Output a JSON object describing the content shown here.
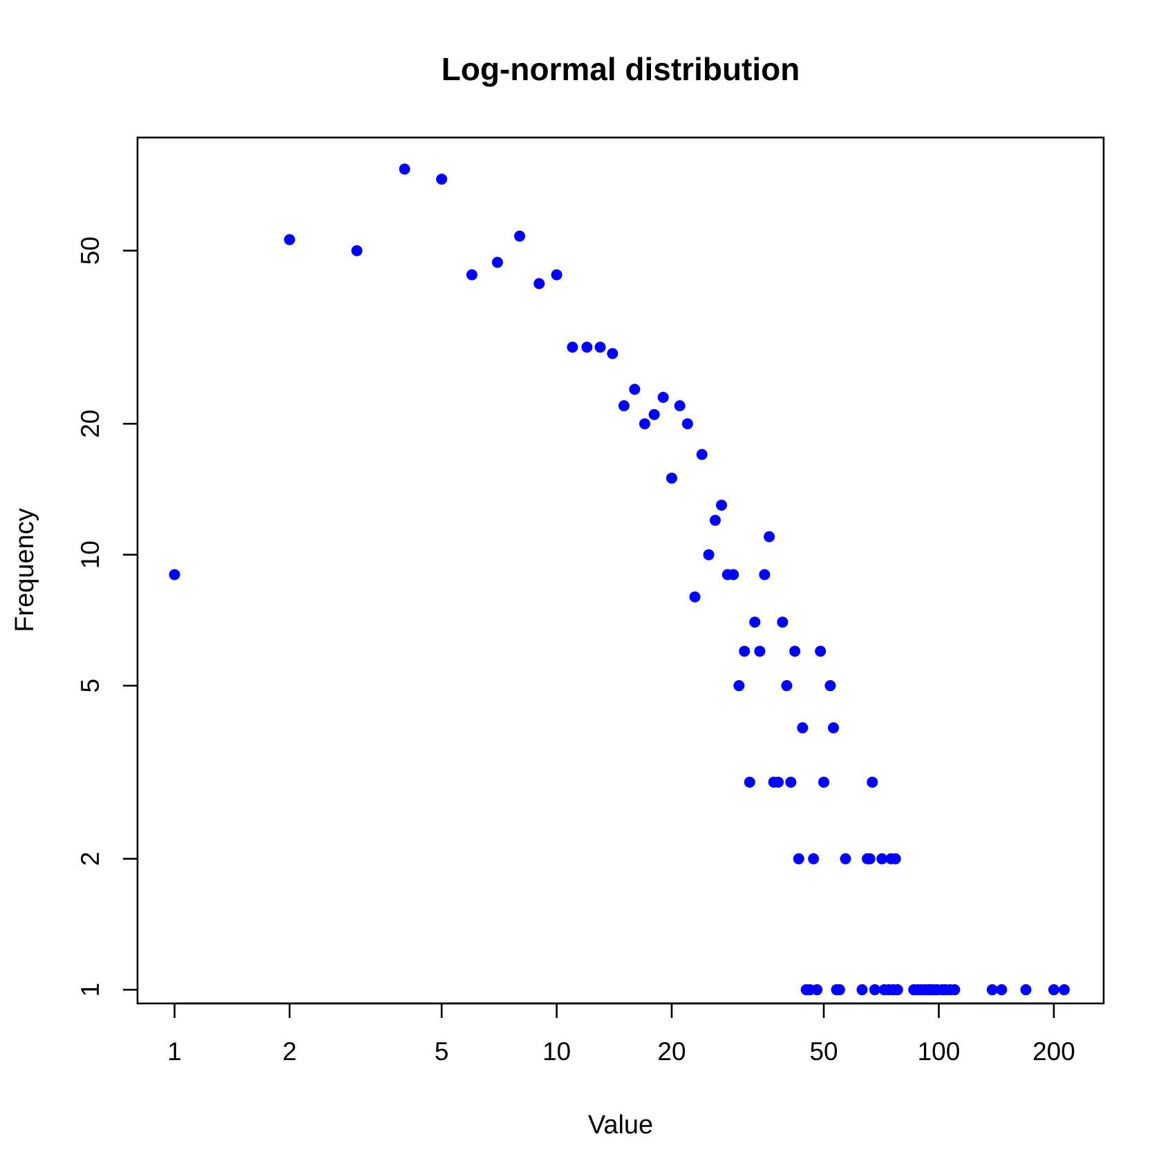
{
  "chart_data": {
    "type": "scatter",
    "title": "Log-normal distribution",
    "xlabel": "Value",
    "ylabel": "Frequency",
    "x_scale": "log",
    "y_scale": "log",
    "xlim": [
      0.8,
      270
    ],
    "ylim": [
      0.93,
      91
    ],
    "x_ticks": [
      1,
      2,
      5,
      10,
      20,
      50,
      100,
      200
    ],
    "x_tick_labels": [
      "1",
      "2",
      "5",
      "10",
      "20",
      "50",
      "100",
      "200"
    ],
    "y_ticks": [
      1,
      2,
      5,
      10,
      20,
      50
    ],
    "y_tick_labels": [
      "1",
      "2",
      "5",
      "10",
      "20",
      "50"
    ],
    "grid": false,
    "marker_color": "#0000ff",
    "series": [
      {
        "name": "counts",
        "points": [
          [
            1,
            9
          ],
          [
            2,
            53
          ],
          [
            3,
            50
          ],
          [
            4,
            77
          ],
          [
            5,
            73
          ],
          [
            6,
            44
          ],
          [
            7,
            47
          ],
          [
            8,
            54
          ],
          [
            9,
            42
          ],
          [
            10,
            44
          ],
          [
            11,
            30
          ],
          [
            12,
            30
          ],
          [
            13,
            30
          ],
          [
            14,
            29
          ],
          [
            15,
            22
          ],
          [
            16,
            24
          ],
          [
            17,
            20
          ],
          [
            18,
            21
          ],
          [
            19,
            23
          ],
          [
            20,
            15
          ],
          [
            21,
            22
          ],
          [
            22,
            20
          ],
          [
            23,
            8
          ],
          [
            24,
            17
          ],
          [
            25,
            10
          ],
          [
            26,
            12
          ],
          [
            27,
            13
          ],
          [
            28,
            9
          ],
          [
            29,
            9
          ],
          [
            30,
            5
          ],
          [
            31,
            6
          ],
          [
            32,
            3
          ],
          [
            33,
            7
          ],
          [
            34,
            6
          ],
          [
            35,
            9
          ],
          [
            36,
            11
          ],
          [
            37,
            3
          ],
          [
            38,
            3
          ],
          [
            39,
            7
          ],
          [
            40,
            5
          ],
          [
            41,
            3
          ],
          [
            42,
            6
          ],
          [
            43,
            2
          ],
          [
            44,
            4
          ],
          [
            45,
            1
          ],
          [
            46,
            1
          ],
          [
            47,
            2
          ],
          [
            48,
            1
          ],
          [
            49,
            6
          ],
          [
            50,
            3
          ],
          [
            52,
            5
          ],
          [
            53,
            4
          ],
          [
            54,
            1
          ],
          [
            55,
            1
          ],
          [
            57,
            2
          ],
          [
            63,
            1
          ],
          [
            65,
            2
          ],
          [
            66,
            2
          ],
          [
            67,
            3
          ],
          [
            68,
            1
          ],
          [
            71,
            2
          ],
          [
            72,
            1
          ],
          [
            74,
            1
          ],
          [
            75,
            2
          ],
          [
            76,
            1
          ],
          [
            77,
            2
          ],
          [
            78,
            1
          ],
          [
            86,
            1
          ],
          [
            88,
            1
          ],
          [
            90,
            1
          ],
          [
            92,
            1
          ],
          [
            94,
            1
          ],
          [
            95,
            1
          ],
          [
            97,
            1
          ],
          [
            99,
            1
          ],
          [
            102,
            1
          ],
          [
            104,
            1
          ],
          [
            107,
            1
          ],
          [
            110,
            1
          ],
          [
            138,
            1
          ],
          [
            146,
            1
          ],
          [
            169,
            1
          ],
          [
            200,
            1
          ],
          [
            213,
            1
          ]
        ]
      }
    ]
  }
}
